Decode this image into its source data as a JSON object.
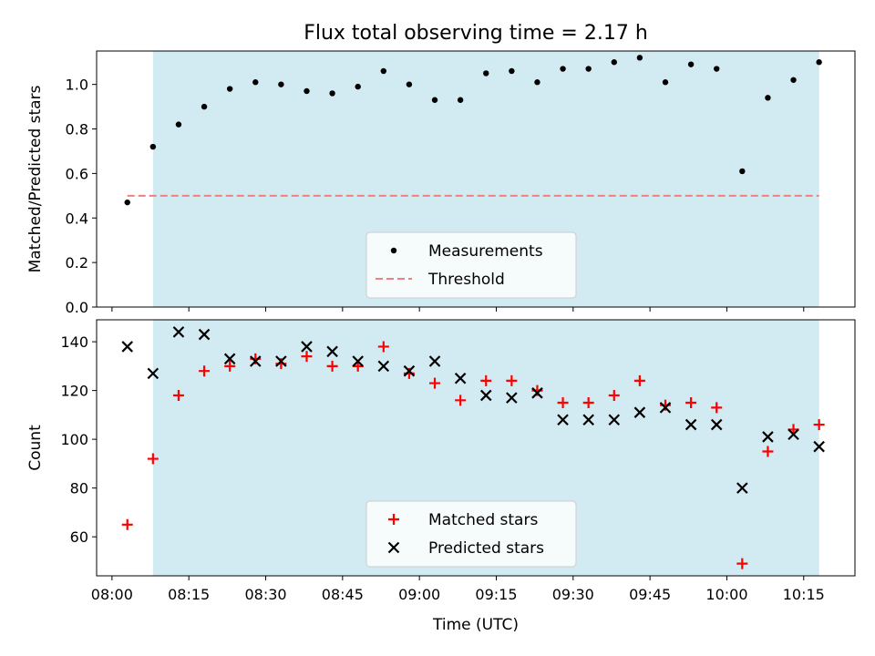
{
  "figure_title": "Flux total observing time = 2.17 h",
  "colors": {
    "shade": "#add8e6",
    "measurement": "#000000",
    "threshold": "#f08080",
    "matched": "#ff0000",
    "predicted": "#000000"
  },
  "chart_data": [
    {
      "type": "scatter",
      "title": "Flux total observing time = 2.17 h",
      "xlabel": "",
      "ylabel": "Matched/Predicted stars",
      "xlim": [
        "07:57",
        "10:25"
      ],
      "ylim": [
        0,
        1.15
      ],
      "yticks": [
        "0.0",
        "0.2",
        "0.4",
        "0.6",
        "0.8",
        "1.0"
      ],
      "ytick_values": [
        0,
        0.2,
        0.4,
        0.6,
        0.8,
        1.0
      ],
      "xtick_values": [
        "08:00",
        "08:15",
        "08:30",
        "08:45",
        "09:00",
        "09:15",
        "09:30",
        "09:45",
        "10:00",
        "10:15"
      ],
      "shaded_span": [
        "08:08",
        "10:18"
      ],
      "legend_position": "bottom-center",
      "series": [
        {
          "name": "Measurements",
          "marker": "dot",
          "x": [
            "08:03",
            "08:08",
            "08:13",
            "08:18",
            "08:23",
            "08:28",
            "08:33",
            "08:38",
            "08:43",
            "08:48",
            "08:53",
            "08:58",
            "09:03",
            "09:08",
            "09:13",
            "09:18",
            "09:23",
            "09:28",
            "09:33",
            "09:38",
            "09:43",
            "09:48",
            "09:53",
            "09:58",
            "10:03",
            "10:08",
            "10:13",
            "10:18"
          ],
          "y": [
            0.47,
            0.72,
            0.82,
            0.9,
            0.98,
            1.01,
            1.0,
            0.97,
            0.96,
            0.99,
            1.06,
            1.0,
            0.93,
            0.93,
            1.05,
            1.06,
            1.01,
            1.07,
            1.07,
            1.1,
            1.12,
            1.01,
            1.09,
            1.07,
            0.61,
            0.94,
            1.02,
            1.1
          ]
        },
        {
          "name": "Threshold",
          "style": "dashed",
          "x": [
            "08:03",
            "10:18"
          ],
          "y": [
            0.5,
            0.5
          ]
        }
      ]
    },
    {
      "type": "scatter",
      "title": "",
      "xlabel": "Time (UTC)",
      "ylabel": "Count",
      "xlim": [
        "07:57",
        "10:25"
      ],
      "ylim": [
        44,
        149
      ],
      "yticks": [
        "60",
        "80",
        "100",
        "120",
        "140"
      ],
      "ytick_values": [
        60,
        80,
        100,
        120,
        140
      ],
      "xticks": [
        "08:00",
        "08:15",
        "08:30",
        "08:45",
        "09:00",
        "09:15",
        "09:30",
        "09:45",
        "10:00",
        "10:15"
      ],
      "shaded_span": [
        "08:08",
        "10:18"
      ],
      "legend_position": "bottom-center",
      "series": [
        {
          "name": "Matched stars",
          "marker": "plus",
          "x": [
            "08:03",
            "08:08",
            "08:13",
            "08:18",
            "08:23",
            "08:28",
            "08:33",
            "08:38",
            "08:43",
            "08:48",
            "08:53",
            "08:58",
            "09:03",
            "09:08",
            "09:13",
            "09:18",
            "09:23",
            "09:28",
            "09:33",
            "09:38",
            "09:43",
            "09:48",
            "09:53",
            "09:58",
            "10:03",
            "10:08",
            "10:13",
            "10:18"
          ],
          "y": [
            65,
            92,
            118,
            128,
            130,
            133,
            131,
            134,
            130,
            130,
            138,
            127,
            123,
            116,
            124,
            124,
            120,
            115,
            115,
            118,
            124,
            114,
            115,
            113,
            49,
            95,
            104,
            106
          ]
        },
        {
          "name": "Predicted stars",
          "marker": "x",
          "x": [
            "08:03",
            "08:08",
            "08:13",
            "08:18",
            "08:23",
            "08:28",
            "08:33",
            "08:38",
            "08:43",
            "08:48",
            "08:53",
            "08:58",
            "09:03",
            "09:08",
            "09:13",
            "09:18",
            "09:23",
            "09:28",
            "09:33",
            "09:38",
            "09:43",
            "09:48",
            "09:53",
            "09:58",
            "10:03",
            "10:08",
            "10:13",
            "10:18"
          ],
          "y": [
            138,
            127,
            144,
            143,
            133,
            132,
            132,
            138,
            136,
            132,
            130,
            128,
            132,
            125,
            118,
            117,
            119,
            108,
            108,
            108,
            111,
            113,
            106,
            106,
            80,
            101,
            102,
            97
          ]
        }
      ]
    }
  ]
}
